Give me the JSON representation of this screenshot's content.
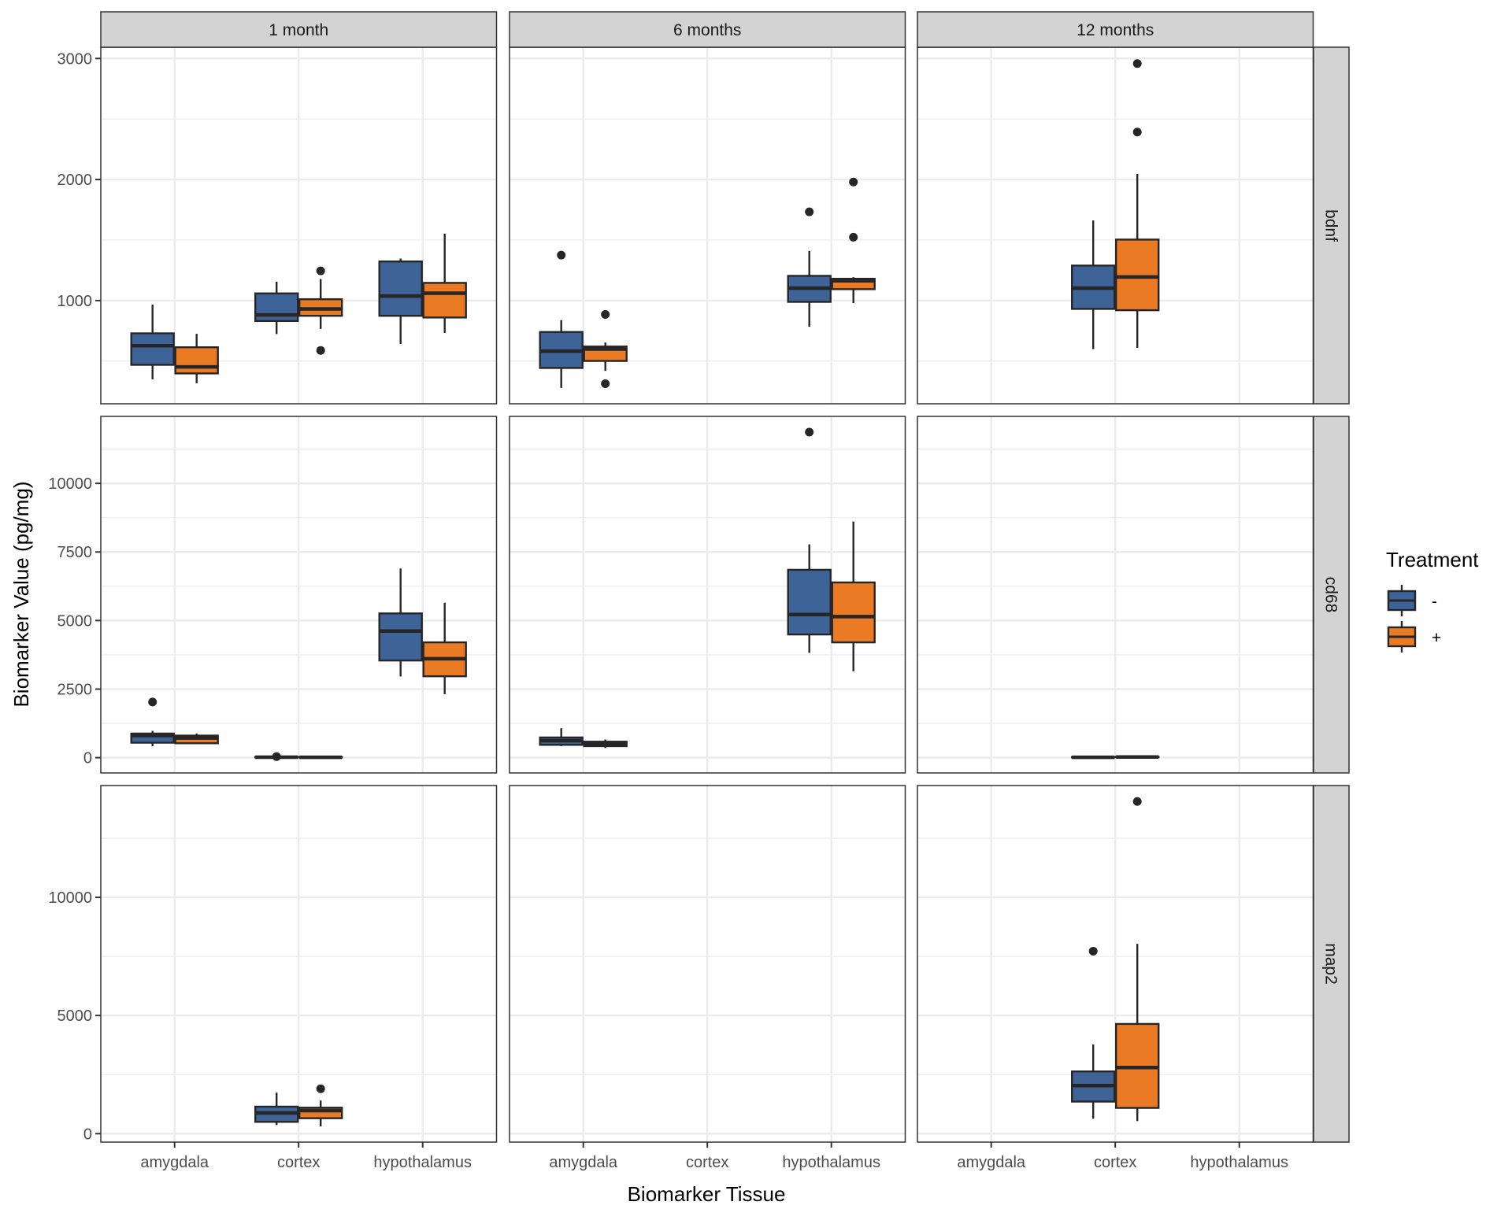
{
  "chart_data": {
    "type": "boxplot",
    "title": "",
    "xlabel": "Biomarker Tissue",
    "ylabel": "Biomarker Value (pg/mg)",
    "facet_columns": [
      "1 month",
      "6 months",
      "12 months"
    ],
    "facet_rows": [
      "bdnf",
      "cd68",
      "map2"
    ],
    "categories": [
      "amygdala",
      "cortex",
      "hypothalamus"
    ],
    "legend": {
      "title": "Treatment",
      "position": "right",
      "entries": [
        {
          "label": "-",
          "color": "#3d6397"
        },
        {
          "label": "+",
          "color": "#ea7a23"
        }
      ]
    },
    "grid": true,
    "row_axes": {
      "bdnf": {
        "ylim": [
          147,
          3093
        ],
        "ticks": [
          1000,
          2000,
          3000
        ],
        "tick_labels": [
          "1000",
          "2000",
          "3000"
        ],
        "minor": [
          500,
          1500,
          2500
        ]
      },
      "cd68": {
        "ylim": [
          -557,
          12443
        ],
        "ticks": [
          0,
          2500,
          5000,
          7500,
          10000
        ],
        "tick_labels": [
          "0",
          "2500",
          "5000",
          "7500",
          "10000"
        ],
        "minor": [
          1250,
          3750,
          6250,
          8750,
          11250
        ]
      },
      "map2": {
        "ylim": [
          -357,
          14733
        ],
        "ticks": [
          0,
          5000,
          10000
        ],
        "tick_labels": [
          "0",
          "5000",
          "10000"
        ],
        "minor": [
          2500,
          7500,
          12500
        ]
      }
    },
    "boxes": [
      {
        "row": "bdnf",
        "col": "1 month",
        "tissue": "amygdala",
        "treatment": "-",
        "whisker_low": 349,
        "q1": 469,
        "median": 627,
        "q3": 729,
        "whisker_high": 967,
        "outliers": []
      },
      {
        "row": "bdnf",
        "col": "1 month",
        "tissue": "amygdala",
        "treatment": "+",
        "whisker_low": 317,
        "q1": 398,
        "median": 452,
        "q3": 614,
        "whisker_high": 725,
        "outliers": []
      },
      {
        "row": "bdnf",
        "col": "1 month",
        "tissue": "cortex",
        "treatment": "-",
        "whisker_low": 723,
        "q1": 831,
        "median": 881,
        "q3": 1059,
        "whisker_high": 1156,
        "outliers": []
      },
      {
        "row": "bdnf",
        "col": "1 month",
        "tissue": "cortex",
        "treatment": "+",
        "whisker_low": 766,
        "q1": 874,
        "median": 931,
        "q3": 1011,
        "whisker_high": 1178,
        "outliers": [
          1245,
          588
        ]
      },
      {
        "row": "bdnf",
        "col": "1 month",
        "tissue": "hypothalamus",
        "treatment": "-",
        "whisker_low": 642,
        "q1": 874,
        "median": 1037,
        "q3": 1323,
        "whisker_high": 1347,
        "outliers": []
      },
      {
        "row": "bdnf",
        "col": "1 month",
        "tissue": "hypothalamus",
        "treatment": "+",
        "whisker_low": 733,
        "q1": 860,
        "median": 1061,
        "q3": 1146,
        "whisker_high": 1553,
        "outliers": []
      },
      {
        "row": "bdnf",
        "col": "6 months",
        "tissue": "amygdala",
        "treatment": "-",
        "whisker_low": 278,
        "q1": 443,
        "median": 582,
        "q3": 740,
        "whisker_high": 838,
        "outliers": [
          1375
        ]
      },
      {
        "row": "bdnf",
        "col": "6 months",
        "tissue": "amygdala",
        "treatment": "+",
        "whisker_low": 419,
        "q1": 501,
        "median": 599,
        "q3": 620,
        "whisker_high": 653,
        "outliers": [
          885,
          313
        ]
      },
      {
        "row": "bdnf",
        "col": "6 months",
        "tissue": "hypothalamus",
        "treatment": "-",
        "whisker_low": 783,
        "q1": 989,
        "median": 1102,
        "q3": 1204,
        "whisker_high": 1410,
        "outliers": [
          1733
        ]
      },
      {
        "row": "bdnf",
        "col": "6 months",
        "tissue": "hypothalamus",
        "treatment": "+",
        "whisker_low": 979,
        "q1": 1094,
        "median": 1163,
        "q3": 1180,
        "whisker_high": 1193,
        "outliers": [
          1979,
          1523
        ]
      },
      {
        "row": "bdnf",
        "col": "12 months",
        "tissue": "cortex",
        "treatment": "-",
        "whisker_low": 599,
        "q1": 931,
        "median": 1102,
        "q3": 1289,
        "whisker_high": 1662,
        "outliers": []
      },
      {
        "row": "bdnf",
        "col": "12 months",
        "tissue": "cortex",
        "treatment": "+",
        "whisker_low": 609,
        "q1": 920,
        "median": 1195,
        "q3": 1504,
        "whisker_high": 2047,
        "outliers": [
          2958,
          2392
        ]
      },
      {
        "row": "cd68",
        "col": "1 month",
        "tissue": "amygdala",
        "treatment": "-",
        "whisker_low": 420,
        "q1": 546,
        "median": 805,
        "q3": 879,
        "whisker_high": 977,
        "outliers": [
          2029
        ]
      },
      {
        "row": "cd68",
        "col": "1 month",
        "tissue": "amygdala",
        "treatment": "+",
        "whisker_low": 497,
        "q1": 526,
        "median": 718,
        "q3": 805,
        "whisker_high": 879,
        "outliers": []
      },
      {
        "row": "cd68",
        "col": "1 month",
        "tissue": "cortex",
        "treatment": "-",
        "whisker_low": 5,
        "q1": 10,
        "median": 17,
        "q3": 25,
        "whisker_high": 30,
        "outliers": [
          40
        ]
      },
      {
        "row": "cd68",
        "col": "1 month",
        "tissue": "cortex",
        "treatment": "+",
        "whisker_low": 5,
        "q1": 10,
        "median": 15,
        "q3": 22,
        "whisker_high": 28,
        "outliers": []
      },
      {
        "row": "cd68",
        "col": "1 month",
        "tissue": "hypothalamus",
        "treatment": "-",
        "whisker_low": 2960,
        "q1": 3543,
        "median": 4615,
        "q3": 5259,
        "whisker_high": 6897,
        "outliers": []
      },
      {
        "row": "cd68",
        "col": "1 month",
        "tissue": "hypothalamus",
        "treatment": "+",
        "whisker_low": 2316,
        "q1": 2968,
        "median": 3609,
        "q3": 4204,
        "whisker_high": 5649,
        "outliers": []
      },
      {
        "row": "cd68",
        "col": "6 months",
        "tissue": "amygdala",
        "treatment": "-",
        "whisker_low": 420,
        "q1": 468,
        "median": 621,
        "q3": 736,
        "whisker_high": 1072,
        "outliers": []
      },
      {
        "row": "cd68",
        "col": "6 months",
        "tissue": "amygdala",
        "treatment": "+",
        "whisker_low": 353,
        "q1": 420,
        "median": 497,
        "q3": 583,
        "whisker_high": 661,
        "outliers": []
      },
      {
        "row": "cd68",
        "col": "6 months",
        "tissue": "hypothalamus",
        "treatment": "-",
        "whisker_low": 3822,
        "q1": 4492,
        "median": 5219,
        "q3": 6849,
        "whisker_high": 7777,
        "outliers": [
          11869
        ]
      },
      {
        "row": "cd68",
        "col": "6 months",
        "tissue": "hypothalamus",
        "treatment": "+",
        "whisker_low": 3150,
        "q1": 4204,
        "median": 5144,
        "q3": 6389,
        "whisker_high": 8610,
        "outliers": []
      },
      {
        "row": "cd68",
        "col": "12 months",
        "tissue": "cortex",
        "treatment": "-",
        "whisker_low": 5,
        "q1": 10,
        "median": 15,
        "q3": 22,
        "whisker_high": 28,
        "outliers": []
      },
      {
        "row": "cd68",
        "col": "12 months",
        "tissue": "cortex",
        "treatment": "+",
        "whisker_low": 10,
        "q1": 18,
        "median": 25,
        "q3": 32,
        "whisker_high": 40,
        "outliers": []
      },
      {
        "row": "map2",
        "col": "1 month",
        "tissue": "cortex",
        "treatment": "-",
        "whisker_low": 367,
        "q1": 500,
        "median": 877,
        "q3": 1143,
        "whisker_high": 1733,
        "outliers": []
      },
      {
        "row": "map2",
        "col": "1 month",
        "tissue": "cortex",
        "treatment": "+",
        "whisker_low": 310,
        "q1": 653,
        "median": 977,
        "q3": 1100,
        "whisker_high": 1400,
        "outliers": [
          1900
        ]
      },
      {
        "row": "map2",
        "col": "12 months",
        "tissue": "cortex",
        "treatment": "-",
        "whisker_low": 633,
        "q1": 1357,
        "median": 2033,
        "q3": 2633,
        "whisker_high": 3777,
        "outliers": [
          7723
        ]
      },
      {
        "row": "map2",
        "col": "12 months",
        "tissue": "cortex",
        "treatment": "+",
        "whisker_low": 533,
        "q1": 1090,
        "median": 2800,
        "q3": 4643,
        "whisker_high": 8033,
        "outliers": [
          14057
        ]
      }
    ]
  }
}
